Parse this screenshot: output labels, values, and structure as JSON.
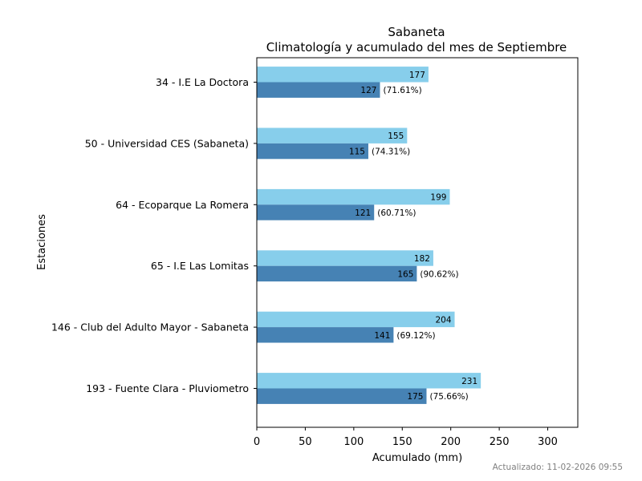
{
  "chart_data": {
    "type": "bar",
    "orientation": "horizontal",
    "title": "Sabaneta",
    "subtitle": "Climatología y acumulado del mes de Septiembre",
    "xlabel": "Acumulado (mm)",
    "ylabel": "Estaciones",
    "xlim": [
      0,
      331
    ],
    "xticks": [
      0,
      50,
      100,
      150,
      200,
      250,
      300
    ],
    "categories": [
      "34 - I.E La Doctora",
      "50 - Universidad CES (Sabaneta)",
      "64 - Ecoparque La Romera",
      "65 - I.E Las Lomitas",
      "146 - Club del Adulto Mayor - Sabaneta",
      "193 - Fuente Clara - Pluviometro"
    ],
    "series": [
      {
        "name": "Climatología",
        "color": "#87ceeb",
        "values": [
          177,
          155,
          199,
          182,
          204,
          231
        ]
      },
      {
        "name": "Acumulado",
        "color": "#4682b4",
        "values": [
          127,
          115,
          121,
          165,
          141,
          175
        ]
      }
    ],
    "percent_labels": [
      "(71.61%)",
      "(74.31%)",
      "(60.71%)",
      "(90.62%)",
      "(69.12%)",
      "(75.66%)"
    ],
    "footer": "Actualizado: 11-02-2026 09:55"
  }
}
